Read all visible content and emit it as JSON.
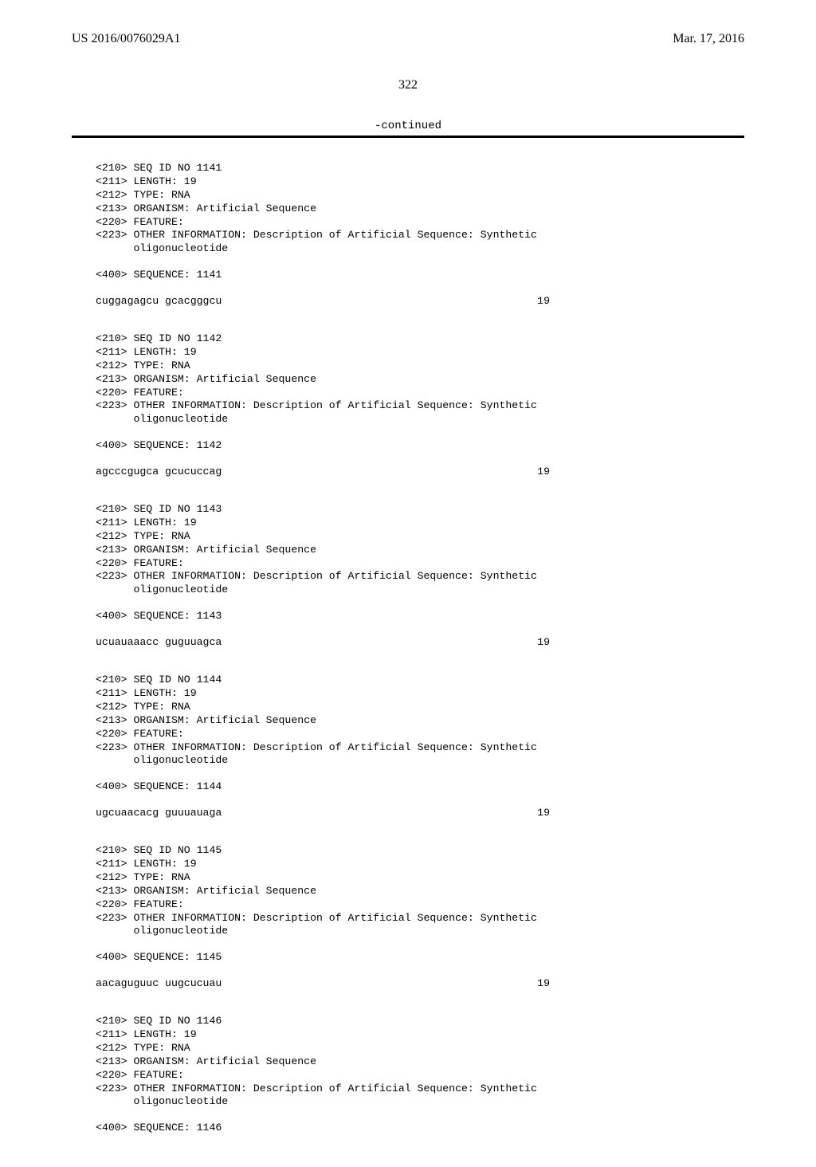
{
  "header": {
    "pub_number": "US 2016/0076029A1",
    "pub_date": "Mar. 17, 2016"
  },
  "page_number": "322",
  "continued_label": "-continued",
  "entries": [
    {
      "id": "1141",
      "lines": [
        "<210> SEQ ID NO 1141",
        "<211> LENGTH: 19",
        "<212> TYPE: RNA",
        "<213> ORGANISM: Artificial Sequence",
        "<220> FEATURE:",
        "<223> OTHER INFORMATION: Description of Artificial Sequence: Synthetic",
        "      oligonucleotide"
      ],
      "seq_header": "<400> SEQUENCE: 1141",
      "sequence": "cuggagagcu gcacgggcu",
      "length": "19"
    },
    {
      "id": "1142",
      "lines": [
        "<210> SEQ ID NO 1142",
        "<211> LENGTH: 19",
        "<212> TYPE: RNA",
        "<213> ORGANISM: Artificial Sequence",
        "<220> FEATURE:",
        "<223> OTHER INFORMATION: Description of Artificial Sequence: Synthetic",
        "      oligonucleotide"
      ],
      "seq_header": "<400> SEQUENCE: 1142",
      "sequence": "agcccgugca gcucuccag",
      "length": "19"
    },
    {
      "id": "1143",
      "lines": [
        "<210> SEQ ID NO 1143",
        "<211> LENGTH: 19",
        "<212> TYPE: RNA",
        "<213> ORGANISM: Artificial Sequence",
        "<220> FEATURE:",
        "<223> OTHER INFORMATION: Description of Artificial Sequence: Synthetic",
        "      oligonucleotide"
      ],
      "seq_header": "<400> SEQUENCE: 1143",
      "sequence": "ucuauaaacc guguuagca",
      "length": "19"
    },
    {
      "id": "1144",
      "lines": [
        "<210> SEQ ID NO 1144",
        "<211> LENGTH: 19",
        "<212> TYPE: RNA",
        "<213> ORGANISM: Artificial Sequence",
        "<220> FEATURE:",
        "<223> OTHER INFORMATION: Description of Artificial Sequence: Synthetic",
        "      oligonucleotide"
      ],
      "seq_header": "<400> SEQUENCE: 1144",
      "sequence": "ugcuaacacg guuuauaga",
      "length": "19"
    },
    {
      "id": "1145",
      "lines": [
        "<210> SEQ ID NO 1145",
        "<211> LENGTH: 19",
        "<212> TYPE: RNA",
        "<213> ORGANISM: Artificial Sequence",
        "<220> FEATURE:",
        "<223> OTHER INFORMATION: Description of Artificial Sequence: Synthetic",
        "      oligonucleotide"
      ],
      "seq_header": "<400> SEQUENCE: 1145",
      "sequence": "aacaguguuc uugcucuau",
      "length": "19"
    },
    {
      "id": "1146",
      "lines": [
        "<210> SEQ ID NO 1146",
        "<211> LENGTH: 19",
        "<212> TYPE: RNA",
        "<213> ORGANISM: Artificial Sequence",
        "<220> FEATURE:",
        "<223> OTHER INFORMATION: Description of Artificial Sequence: Synthetic",
        "      oligonucleotide"
      ],
      "seq_header": "<400> SEQUENCE: 1146",
      "sequence": "",
      "length": ""
    }
  ]
}
